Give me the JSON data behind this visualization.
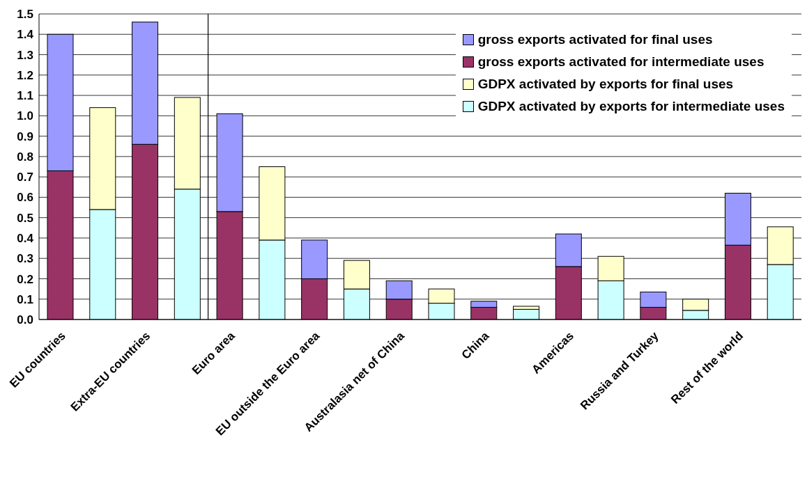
{
  "chart_data": {
    "type": "bar",
    "stacked": true,
    "categories": [
      "EU countries",
      null,
      "Extra-EU countries",
      null,
      "Euro area",
      null,
      "EU outside the Euro area",
      null,
      "Australasia net of China",
      null,
      "China",
      null,
      "Americas",
      null,
      "Russia and Turkey",
      null,
      "Rest of the world",
      null
    ],
    "series": [
      {
        "name": "gross exports activated for intermediate uses",
        "color": "#993366",
        "values": [
          0.73,
          null,
          0.86,
          null,
          0.53,
          null,
          0.2,
          null,
          0.1,
          null,
          0.06,
          null,
          0.26,
          null,
          0.06,
          null,
          0.365,
          null
        ]
      },
      {
        "name": "gross exports activated for final uses",
        "color": "#9999ff",
        "values": [
          0.67,
          null,
          0.6,
          null,
          0.48,
          null,
          0.19,
          null,
          0.09,
          null,
          0.03,
          null,
          0.16,
          null,
          0.075,
          null,
          0.255,
          null
        ]
      },
      {
        "name": "GDPX activated by exports for intermediate uses",
        "color": "#ccffff",
        "values": [
          null,
          0.54,
          null,
          0.64,
          null,
          0.39,
          null,
          0.15,
          null,
          0.08,
          null,
          0.05,
          null,
          0.19,
          null,
          0.045,
          null,
          0.27
        ]
      },
      {
        "name": "GDPX activated by exports for final uses",
        "color": "#ffffcc",
        "values": [
          null,
          0.5,
          null,
          0.45,
          null,
          0.36,
          null,
          0.14,
          null,
          0.07,
          null,
          0.015,
          null,
          0.12,
          null,
          0.055,
          null,
          0.185
        ]
      }
    ],
    "ylim": [
      0,
      1.5
    ],
    "yticks": [
      {
        "value": 0,
        "label": "0.0"
      },
      {
        "value": 0.1,
        "label": "0.1"
      },
      {
        "value": 0.2,
        "label": "0.2"
      },
      {
        "value": 0.3,
        "label": "0.3"
      },
      {
        "value": 0.4,
        "label": "0.4"
      },
      {
        "value": 0.5,
        "label": "0.5"
      },
      {
        "value": 0.6,
        "label": "0.6"
      },
      {
        "value": 0.7,
        "label": "0.7"
      },
      {
        "value": 0.8,
        "label": "0.8"
      },
      {
        "value": 0.9,
        "label": "0.9"
      },
      {
        "value": 1,
        "label": "1.0"
      },
      {
        "value": 1.1,
        "label": "1.1"
      },
      {
        "value": 1.2,
        "label": "1.2"
      },
      {
        "value": 1.3,
        "label": "1.3"
      },
      {
        "value": 1.4,
        "label": "1.4"
      },
      {
        "value": 1.5,
        "label": "1.5"
      }
    ],
    "grid": "y",
    "legend": "top right"
  }
}
